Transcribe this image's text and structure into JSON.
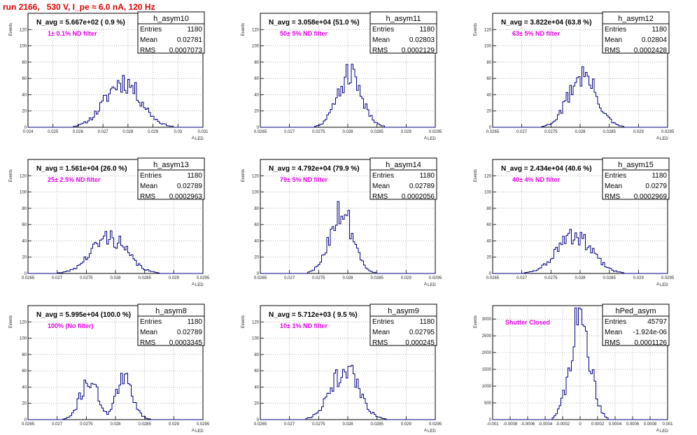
{
  "title": "run 2166,   530 V, I_pe ≈ 6.0 nA, 120 Hz",
  "ylabel": "Events",
  "xlabel": "A",
  "xlabel_sub": "LED",
  "stat_labels": [
    "Entries",
    "Mean",
    "RMS"
  ],
  "colors": {
    "histogram": "#00007f",
    "title": "#e00000",
    "filter_text": "#e000e0",
    "grid": "#888888"
  },
  "chart_data": [
    {
      "type": "bar",
      "name": "h_asym10",
      "header": "N_avg = 5.667e+02 ( 0.9 %)",
      "filter": "1± 0.1% ND filter",
      "entries": "1180",
      "mean": "0.02781",
      "rms": "0.0007073",
      "xlim": [
        0.024,
        0.031
      ],
      "xticks": [
        "0.024",
        "0.025",
        "0.026",
        "0.027",
        "0.028",
        "0.029",
        "0.03",
        "0.031"
      ],
      "ylim": [
        0,
        140
      ],
      "yticks": [
        "0",
        "20",
        "40",
        "60",
        "80",
        "100",
        "120"
      ],
      "center": 0.0278,
      "sigma": 0.00071,
      "peak": 58,
      "nbins": 100,
      "seed": 11
    },
    {
      "type": "bar",
      "name": "h_asym11",
      "header": "N_avg = 3.058e+04 (51.0 %)",
      "filter": "50± 5% ND filter",
      "entries": "1180",
      "mean": "0.02803",
      "rms": "0.0002129",
      "xlim": [
        0.0265,
        0.0295
      ],
      "xticks": [
        "0.0265",
        "0.027",
        "0.0275",
        "0.028",
        "0.0285",
        "0.029",
        "0.0295"
      ],
      "ylim": [
        0,
        140
      ],
      "yticks": [
        "0",
        "20",
        "40",
        "60",
        "80",
        "100",
        "120"
      ],
      "center": 0.02803,
      "sigma": 0.00021,
      "peak": 66,
      "nbins": 100,
      "seed": 21
    },
    {
      "type": "bar",
      "name": "h_asym12",
      "header": "N_avg = 3.822e+04 (63.8 %)",
      "filter": "63± 5% ND filter",
      "entries": "1180",
      "mean": "0.02804",
      "rms": "0.0002428",
      "xlim": [
        0.0265,
        0.0295
      ],
      "xticks": [
        "0.0265",
        "0.027",
        "0.0275",
        "0.028",
        "0.0285",
        "0.029",
        "0.0295"
      ],
      "ylim": [
        0,
        140
      ],
      "yticks": [
        "0",
        "20",
        "40",
        "60",
        "80",
        "100",
        "120"
      ],
      "center": 0.02804,
      "sigma": 0.00024,
      "peak": 66,
      "nbins": 100,
      "seed": 31
    },
    {
      "type": "bar",
      "name": "h_asym13",
      "header": "N_avg = 1.561e+04 (26.0 %)",
      "filter": "25± 2.5% ND filter",
      "entries": "1180",
      "mean": "0.02789",
      "rms": "0.0002963",
      "xlim": [
        0.0265,
        0.0295
      ],
      "xticks": [
        "0.0265",
        "0.027",
        "0.0275",
        "0.028",
        "0.0285",
        "0.029",
        "0.0295"
      ],
      "ylim": [
        0,
        140
      ],
      "yticks": [
        "0",
        "20",
        "40",
        "60",
        "80",
        "100",
        "120"
      ],
      "center": 0.02789,
      "sigma": 0.0003,
      "peak": 46,
      "nbins": 100,
      "seed": 41
    },
    {
      "type": "bar",
      "name": "h_asym14",
      "header": "N_avg = 4.792e+04 (79.9 %)",
      "filter": "79± 5% ND filter",
      "entries": "1180",
      "mean": "0.02789",
      "rms": "0.0002056",
      "xlim": [
        0.0265,
        0.0295
      ],
      "xticks": [
        "0.0265",
        "0.027",
        "0.0275",
        "0.028",
        "0.0285",
        "0.029",
        "0.0295"
      ],
      "ylim": [
        0,
        140
      ],
      "yticks": [
        "0",
        "20",
        "40",
        "60",
        "80",
        "100",
        "120"
      ],
      "center": 0.02789,
      "sigma": 0.0002,
      "peak": 79,
      "nbins": 100,
      "seed": 51
    },
    {
      "type": "bar",
      "name": "h_asym15",
      "header": "N_avg = 2.434e+04 (40.6 %)",
      "filter": "40± 4% ND filter",
      "entries": "1180",
      "mean": "0.0279",
      "rms": "0.0002969",
      "xlim": [
        0.0265,
        0.0295
      ],
      "xticks": [
        "0.0265",
        "0.027",
        "0.0275",
        "0.028",
        "0.0285",
        "0.029",
        "0.0295"
      ],
      "ylim": [
        0,
        140
      ],
      "yticks": [
        "0",
        "20",
        "40",
        "60",
        "80",
        "100",
        "120"
      ],
      "center": 0.0279,
      "sigma": 0.0003,
      "peak": 47,
      "nbins": 100,
      "seed": 61
    },
    {
      "type": "bar",
      "name": "h_asym8",
      "header": "N_avg = 5.995e+04 (100.0 %)",
      "filter": "100% (No filter)",
      "entries": "1180",
      "mean": "0.02789",
      "rms": "0.0003345",
      "xlim": [
        0.0265,
        0.0295
      ],
      "xticks": [
        "0.0265",
        "0.027",
        "0.0275",
        "0.028",
        "0.0285",
        "0.029",
        "0.0295"
      ],
      "ylim": [
        0,
        140
      ],
      "yticks": [
        "0",
        "20",
        "40",
        "60",
        "80",
        "100",
        "120"
      ],
      "bimodal": true,
      "center": 0.02755,
      "center2": 0.02815,
      "sigma": 0.00015,
      "peak": 50,
      "nbins": 100,
      "seed": 71
    },
    {
      "type": "bar",
      "name": "h_asym9",
      "header": "N_avg = 5.712e+03 ( 9.5 %)",
      "filter": "10± 1% ND filter",
      "entries": "1180",
      "mean": "0.02795",
      "rms": "0.000245",
      "xlim": [
        0.0265,
        0.0295
      ],
      "xticks": [
        "0.0265",
        "0.027",
        "0.0275",
        "0.028",
        "0.0285",
        "0.029",
        "0.0295"
      ],
      "ylim": [
        0,
        140
      ],
      "yticks": [
        "0",
        "20",
        "40",
        "60",
        "80",
        "100",
        "120"
      ],
      "center": 0.02795,
      "sigma": 0.00024,
      "peak": 63,
      "nbins": 100,
      "seed": 81
    },
    {
      "type": "bar",
      "name": "hPed_asym",
      "header": "",
      "filter": "Shutter Closed",
      "entries": "45797",
      "mean": "-1.924e-06",
      "rms": "0.0001126",
      "xlim": [
        -0.001,
        0.001
      ],
      "xticks": [
        "-0.001",
        "-0.0008",
        "-0.0006",
        "-0.0004",
        "-0.0002",
        "0",
        "0.0002",
        "0.0004",
        "0.0006",
        "0.0008",
        "0.001"
      ],
      "ylim": [
        0,
        3400
      ],
      "yticks": [
        "0",
        "500",
        "1000",
        "1500",
        "2000",
        "2500",
        "3000"
      ],
      "center": 0.0,
      "sigma": 0.000112,
      "peak": 3180,
      "nbins": 100,
      "seed": 91
    }
  ]
}
